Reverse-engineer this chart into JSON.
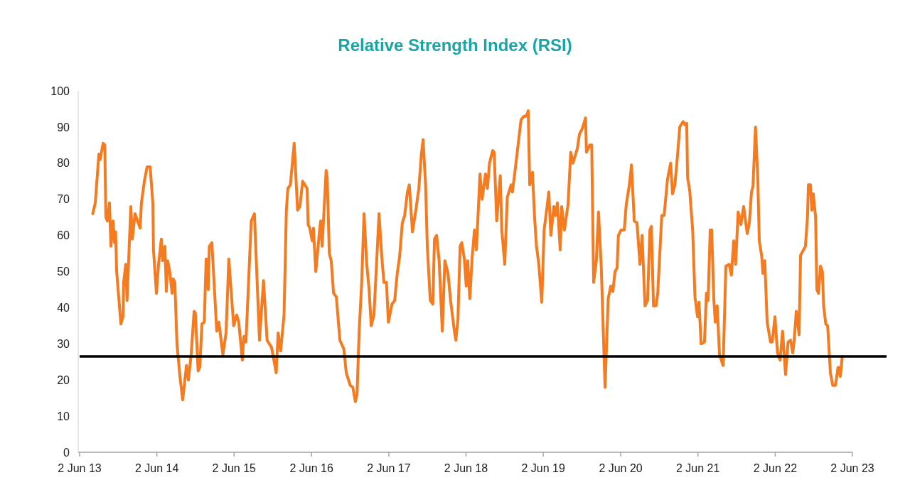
{
  "chart_data": {
    "type": "line",
    "title": "Relative Strength Index (RSI)",
    "xlim": [
      "2013-06-02",
      "2023-06-02"
    ],
    "xticks": [
      {
        "value": "2013-06-02",
        "label": "2 Jun 13"
      },
      {
        "value": "2014-06-02",
        "label": "2 Jun 14"
      },
      {
        "value": "2015-06-02",
        "label": "2 Jun 15"
      },
      {
        "value": "2016-06-02",
        "label": "2 Jun 16"
      },
      {
        "value": "2017-06-02",
        "label": "2 Jun 17"
      },
      {
        "value": "2018-06-02",
        "label": "2 Jun 18"
      },
      {
        "value": "2019-06-02",
        "label": "2 Jun 19"
      },
      {
        "value": "2020-06-02",
        "label": "2 Jun 20"
      },
      {
        "value": "2021-06-02",
        "label": "2 Jun 21"
      },
      {
        "value": "2022-06-02",
        "label": "2 Jun 22"
      },
      {
        "value": "2023-06-02",
        "label": "2 Jun 23"
      }
    ],
    "ylim": [
      0,
      100
    ],
    "yticks": [
      0,
      10,
      20,
      30,
      40,
      50,
      60,
      70,
      80,
      90,
      100
    ],
    "grid": false,
    "marker": "none",
    "line_style": "solid",
    "ref_lines": [
      {
        "axis": "y",
        "value": 26.5,
        "label": null,
        "color": "#000000"
      }
    ],
    "series": [
      {
        "color": "#f47b20",
        "x": [
          "2013-08-03",
          "2013-08-15",
          "2013-08-25",
          "2013-09-01",
          "2013-09-07",
          "2013-09-21",
          "2013-09-29",
          "2013-10-04",
          "2013-10-11",
          "2013-10-21",
          "2013-10-28",
          "2013-11-07",
          "2013-11-14",
          "2013-11-19",
          "2013-11-24",
          "2013-12-14",
          "2013-12-24",
          "2013-12-27",
          "2014-01-06",
          "2014-01-12",
          "2014-01-30",
          "2014-02-06",
          "2014-02-19",
          "2014-03-15",
          "2014-03-21",
          "2014-04-04",
          "2014-04-17",
          "2014-05-01",
          "2014-05-14",
          "2014-05-17",
          "2014-05-31",
          "2014-06-10",
          "2014-06-23",
          "2014-06-29",
          "2014-07-10",
          "2014-07-17",
          "2014-07-23",
          "2014-08-02",
          "2014-08-13",
          "2014-08-18",
          "2014-08-26",
          "2014-09-05",
          "2014-09-19",
          "2014-10-02",
          "2014-10-20",
          "2014-10-29",
          "2014-11-11",
          "2014-11-25",
          "2014-12-01",
          "2014-12-14",
          "2014-12-22",
          "2015-01-01",
          "2015-01-12",
          "2015-01-21",
          "2015-01-31",
          "2015-02-05",
          "2015-02-17",
          "2015-03-12",
          "2015-03-22",
          "2015-04-10",
          "2015-04-25",
          "2015-05-08",
          "2015-05-31",
          "2015-06-14",
          "2015-06-24",
          "2015-07-11",
          "2015-07-18",
          "2015-07-28",
          "2015-08-22",
          "2015-09-06",
          "2015-09-30",
          "2015-10-19",
          "2015-11-05",
          "2015-11-26",
          "2015-12-18",
          "2015-12-27",
          "2016-01-08",
          "2016-01-24",
          "2016-02-04",
          "2016-02-11",
          "2016-02-23",
          "2016-03-12",
          "2016-03-28",
          "2016-04-08",
          "2016-04-21",
          "2016-05-12",
          "2016-05-17",
          "2016-05-25",
          "2016-06-05",
          "2016-06-11",
          "2016-06-22",
          "2016-07-11",
          "2016-07-15",
          "2016-07-22",
          "2016-08-10",
          "2016-08-15",
          "2016-08-25",
          "2016-09-03",
          "2016-09-14",
          "2016-09-27",
          "2016-10-14",
          "2016-11-02",
          "2016-11-13",
          "2016-12-02",
          "2016-12-14",
          "2016-12-26",
          "2017-01-03",
          "2017-01-13",
          "2017-01-25",
          "2017-02-05",
          "2017-02-18",
          "2017-03-01",
          "2017-03-11",
          "2017-03-24",
          "2017-04-17",
          "2017-04-30",
          "2017-05-10",
          "2017-05-22",
          "2017-05-31",
          "2017-06-17",
          "2017-06-30",
          "2017-07-12",
          "2017-07-23",
          "2017-08-05",
          "2017-08-16",
          "2017-08-29",
          "2017-09-07",
          "2017-09-22",
          "2017-10-08",
          "2017-10-22",
          "2017-11-03",
          "2017-11-11",
          "2017-11-23",
          "2017-12-01",
          "2017-12-15",
          "2017-12-27",
          "2018-01-04",
          "2018-01-14",
          "2018-01-26",
          "2018-02-10",
          "2018-02-22",
          "2018-03-09",
          "2018-03-21",
          "2018-04-08",
          "2018-04-15",
          "2018-04-25",
          "2018-05-05",
          "2018-05-13",
          "2018-05-25",
          "2018-06-03",
          "2018-06-10",
          "2018-06-20",
          "2018-07-01",
          "2018-07-12",
          "2018-07-21",
          "2018-08-07",
          "2018-08-17",
          "2018-09-02",
          "2018-09-11",
          "2018-09-21",
          "2018-10-06",
          "2018-10-13",
          "2018-10-25",
          "2018-11-11",
          "2018-11-18",
          "2018-12-02",
          "2018-12-14",
          "2019-01-01",
          "2019-01-07",
          "2019-01-18",
          "2019-02-03",
          "2019-02-17",
          "2019-03-03",
          "2019-03-13",
          "2019-03-23",
          "2019-03-30",
          "2019-04-12",
          "2019-04-22",
          "2019-05-01",
          "2019-05-12",
          "2019-05-26",
          "2019-06-06",
          "2019-06-18",
          "2019-06-28",
          "2019-07-08",
          "2019-07-22",
          "2019-07-30",
          "2019-08-08",
          "2019-08-21",
          "2019-08-28",
          "2019-09-10",
          "2019-09-27",
          "2019-10-10",
          "2019-10-20",
          "2019-11-10",
          "2019-11-20",
          "2019-12-03",
          "2019-12-19",
          "2019-12-23",
          "2020-01-08",
          "2020-01-17",
          "2020-01-26",
          "2020-02-08",
          "2020-02-18",
          "2020-03-02",
          "2020-03-20",
          "2020-04-04",
          "2020-04-16",
          "2020-04-26",
          "2020-05-06",
          "2020-05-16",
          "2020-05-22",
          "2020-06-04",
          "2020-06-19",
          "2020-06-28",
          "2020-07-13",
          "2020-07-23",
          "2020-08-05",
          "2020-08-18",
          "2020-09-01",
          "2020-09-11",
          "2020-09-25",
          "2020-10-07",
          "2020-10-18",
          "2020-10-25",
          "2020-11-04",
          "2020-11-16",
          "2020-11-24",
          "2020-12-13",
          "2020-12-24",
          "2021-01-09",
          "2021-01-24",
          "2021-02-02",
          "2021-02-13",
          "2021-02-26",
          "2021-03-08",
          "2021-03-24",
          "2021-04-04",
          "2021-04-10",
          "2021-04-14",
          "2021-04-24",
          "2021-05-08",
          "2021-05-19",
          "2021-05-31",
          "2021-06-07",
          "2021-06-17",
          "2021-07-03",
          "2021-07-12",
          "2021-07-20",
          "2021-07-30",
          "2021-08-06",
          "2021-08-16",
          "2021-08-23",
          "2021-09-01",
          "2021-09-12",
          "2021-09-29",
          "2021-10-12",
          "2021-10-28",
          "2021-11-07",
          "2021-11-18",
          "2021-11-27",
          "2021-12-09",
          "2021-12-22",
          "2022-01-04",
          "2022-01-21",
          "2022-01-31",
          "2022-02-10",
          "2022-02-17",
          "2022-03-01",
          "2022-03-12",
          "2022-03-19",
          "2022-03-31",
          "2022-04-05",
          "2022-04-14",
          "2022-04-25",
          "2022-05-11",
          "2022-05-19",
          "2022-06-01",
          "2022-06-13",
          "2022-06-25",
          "2022-07-07",
          "2022-07-21",
          "2022-08-02",
          "2022-08-14",
          "2022-08-24",
          "2022-08-30",
          "2022-09-10",
          "2022-09-23",
          "2022-09-30",
          "2022-10-23",
          "2022-11-02",
          "2022-11-06",
          "2022-11-16",
          "2022-11-22",
          "2022-11-29",
          "2022-12-10",
          "2022-12-16",
          "2022-12-24",
          "2023-01-02",
          "2023-01-11",
          "2023-01-17",
          "2023-01-27",
          "2023-02-05",
          "2023-02-18",
          "2023-03-01",
          "2023-03-14",
          "2023-03-26",
          "2023-03-30",
          "2023-04-06",
          "2023-04-15"
        ],
        "values": [
          66,
          69,
          77,
          82.5,
          81,
          85.5,
          85,
          65,
          64,
          69,
          57,
          64,
          58,
          61,
          50,
          35.5,
          37.5,
          47,
          52,
          42,
          68,
          59,
          66,
          62,
          69,
          75,
          79,
          79,
          69,
          56,
          44,
          52,
          59,
          53,
          57,
          44.5,
          53,
          50,
          44,
          48,
          47,
          30,
          21,
          14.5,
          24,
          20,
          27,
          39,
          38.5,
          22.5,
          23.5,
          35.5,
          36,
          53.5,
          45,
          57,
          58,
          33.5,
          36,
          27,
          33,
          53.5,
          35,
          38,
          36,
          25.5,
          32,
          30.5,
          64,
          66,
          31,
          47.5,
          31,
          29,
          22,
          33,
          28,
          38,
          67,
          73,
          74,
          85.5,
          67,
          68,
          75,
          73,
          63,
          62,
          58.5,
          62,
          50,
          62,
          64,
          57,
          78,
          76,
          55,
          53,
          44,
          43,
          31,
          28.5,
          22,
          18.5,
          18,
          14,
          16,
          33.5,
          47,
          66,
          52,
          45,
          35,
          38,
          66,
          54,
          47,
          47,
          36,
          41,
          42,
          49.5,
          54,
          63.5,
          65.5,
          72,
          74,
          61,
          67,
          73,
          82.5,
          86.5,
          74,
          57,
          42,
          41,
          59,
          60,
          53,
          33.5,
          53,
          49.5,
          42,
          33.5,
          31,
          37,
          57,
          58,
          53.5,
          46,
          53,
          42.5,
          54,
          61.5,
          56,
          77,
          70,
          77,
          73,
          80,
          83.5,
          83,
          64,
          76.5,
          61.5,
          52,
          70.5,
          74,
          72,
          77,
          85,
          92,
          93,
          93,
          94.5,
          74,
          77.5,
          65,
          57,
          52,
          41.5,
          61.5,
          67,
          72,
          60,
          68,
          65.5,
          69,
          56,
          68,
          61.5,
          68.5,
          83,
          80,
          84,
          88,
          89.5,
          92.5,
          83,
          85,
          85,
          47,
          53,
          66.5,
          51.5,
          18,
          42.5,
          46,
          44.5,
          50,
          51,
          60,
          61.5,
          61.5,
          68.5,
          74,
          79.5,
          64,
          63.5,
          52,
          60,
          40.5,
          42,
          61.5,
          62.5,
          40.5,
          40.5,
          44,
          65.5,
          65.5,
          75.5,
          80,
          71.5,
          74,
          82.5,
          90,
          91.5,
          90.5,
          91,
          76,
          72.5,
          61.5,
          43,
          37.5,
          41.5,
          30,
          30.5,
          44,
          42,
          61.5,
          61.5,
          42.5,
          36,
          40.5,
          27,
          24,
          51.5,
          52,
          49,
          58.5,
          52,
          66.5,
          63,
          68,
          60.5,
          63.5,
          72,
          73.5,
          90,
          75.5,
          58.5,
          54,
          49.5,
          53,
          36,
          30.5,
          30.5,
          37.5,
          27.5,
          25.5,
          33.5,
          21.5,
          30.5,
          31,
          27.5,
          30.5,
          39,
          32.5,
          54.5,
          57,
          65.5,
          74,
          74,
          67,
          71.5,
          65,
          45,
          44,
          51.5,
          50,
          40.5,
          35.5,
          35,
          22,
          18.5,
          18.5,
          23.5,
          23.5,
          21,
          26.5
        ]
      }
    ]
  }
}
